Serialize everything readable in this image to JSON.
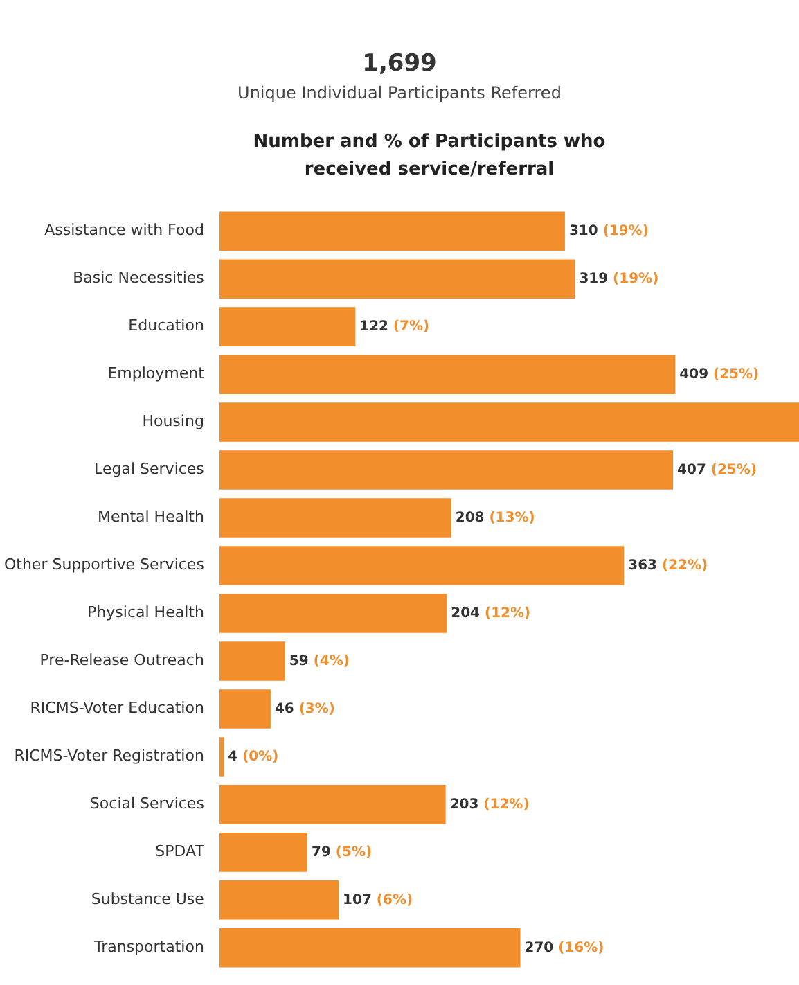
{
  "chart_data": {
    "type": "bar",
    "orientation": "horizontal",
    "title": "1,699",
    "subtitle": "Unique Individual Participants Referred",
    "annotations": [
      "Number and % of Participants who received service/referral"
    ],
    "categories": [
      "Assistance with Food",
      "Basic Necessities",
      "Education",
      "Employment",
      "Housing",
      "Legal Services",
      "Mental Health",
      "Other Supportive Services",
      "Physical Health",
      "Pre-Release Outreach",
      "RICMS-Voter Education",
      "RICMS-Voter Registration",
      "Social Services",
      "SPDAT",
      "Substance Use",
      "Transportation"
    ],
    "values": [
      310,
      319,
      122,
      409,
      520,
      407,
      208,
      363,
      204,
      59,
      46,
      4,
      203,
      79,
      107,
      270
    ],
    "value_labels": [
      "310 (19%)",
      "319 (19%)",
      "122 (7%)",
      "409 (25%)",
      null,
      "407 (25%)",
      "208 (13%)",
      "363 (22%)",
      "204 (12%)",
      "59 (4%)",
      "46 (3%)",
      "4 (0%)",
      "203 (12%)",
      "79 (5%)",
      "107 (6%)",
      "270 (16%)"
    ],
    "color": "#f28e2b"
  }
}
